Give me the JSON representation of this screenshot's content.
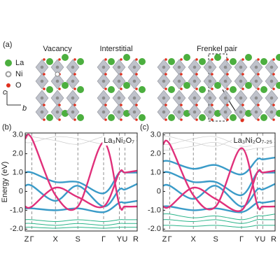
{
  "panel_a": {
    "label": "(a)",
    "titles": [
      "Vacancy",
      "Interstitial",
      "Frenkel pair"
    ],
    "legend": [
      {
        "name": "La",
        "color": "#4caf3f"
      },
      {
        "name": "Ni",
        "color": "#9e9e9e"
      },
      {
        "name": "O",
        "color": "#e0301e"
      }
    ],
    "axes": [
      "c",
      "b"
    ]
  },
  "chart_data": [
    {
      "type": "line",
      "label": "(b)",
      "annotation": "La₃Ni₂O₇",
      "ylabel": "Energy (eV)",
      "categories": [
        "Z",
        "Γ",
        "X",
        "S",
        "Γ",
        "Y",
        "U",
        "R"
      ],
      "ylim": [
        -2.1,
        3.1
      ],
      "yticks": [
        {
          "value": -2,
          "label": "-2.0"
        },
        {
          "value": -1,
          "label": "-1.0"
        },
        0,
        {
          "value": 1,
          "label": "1.0"
        },
        {
          "value": 2,
          "label": "2.0"
        },
        {
          "value": 3,
          "label": "3.0"
        }
      ],
      "series": [
        {
          "color": "#cccccc",
          "values": [
            2.9,
            2.9,
            2.7,
            2.5,
            2.9,
            2.8,
            2.8,
            2.9
          ]
        },
        {
          "color": "#cccccc",
          "values": [
            2.6,
            2.6,
            2.9,
            2.8,
            2.5,
            2.6,
            2.6,
            2.7
          ]
        },
        {
          "color": "#2bb58a",
          "values": [
            -1.5,
            -1.5,
            -1.6,
            -1.5,
            -1.6,
            -1.5,
            -1.5,
            -1.5
          ]
        },
        {
          "color": "#2bb58a",
          "values": [
            -1.7,
            -1.7,
            -1.8,
            -1.7,
            -1.8,
            -1.7,
            -1.7,
            -1.7
          ]
        },
        {
          "color": "#2bb58a",
          "values": [
            -1.9,
            -1.9,
            -1.95,
            -1.9,
            -1.95,
            -1.9,
            -1.9,
            -1.9
          ]
        },
        {
          "color": "#3a9bc8",
          "values": [
            1.0,
            1.0,
            0.5,
            0.5,
            -0.1,
            1.0,
            1.0,
            1.0
          ]
        },
        {
          "color": "#3a9bc8",
          "values": [
            0.3,
            0.3,
            -0.5,
            0.3,
            -0.8,
            0.1,
            0.1,
            0.4
          ]
        },
        {
          "color": "#3a9bc8",
          "values": [
            -0.9,
            -0.9,
            -1.0,
            -0.9,
            -1.1,
            -0.6,
            -0.6,
            -0.5
          ]
        },
        {
          "color": "#e0307a",
          "values": [
            2.8,
            2.8,
            -0.2,
            -0.8,
            2.6,
            -0.7,
            -0.8,
            -0.8
          ]
        },
        {
          "color": "#e0307a",
          "values": [
            -0.8,
            -0.8,
            0.2,
            -0.3,
            -0.8,
            1.0,
            1.0,
            1.1
          ]
        }
      ]
    },
    {
      "type": "line",
      "label": "(c)",
      "annotation": "La₃Ni₂O₇.₂₅",
      "categories": [
        "Z",
        "Γ",
        "X",
        "S",
        "Γ",
        "Y",
        "U",
        "R"
      ],
      "ylim": [
        -2.1,
        3.1
      ],
      "yticks": [
        {
          "value": -2,
          "label": "-2.0"
        },
        {
          "value": -1,
          "label": "-1.0"
        },
        0,
        {
          "value": 1,
          "label": "1.0"
        },
        {
          "value": 2,
          "label": "2.0"
        },
        {
          "value": 3,
          "label": "3.0"
        }
      ],
      "series": [
        {
          "color": "#cccccc",
          "values": [
            2.9,
            2.9,
            2.6,
            2.4,
            2.9,
            2.7,
            2.7,
            2.8
          ]
        },
        {
          "color": "#cccccc",
          "values": [
            2.5,
            2.5,
            2.8,
            2.9,
            2.4,
            2.5,
            2.5,
            2.6
          ]
        },
        {
          "color": "#cccccc",
          "values": [
            2.2,
            2.2,
            2.4,
            2.6,
            2.2,
            2.3,
            2.3,
            2.4
          ]
        },
        {
          "color": "#2bb58a",
          "values": [
            -1.2,
            -1.2,
            -1.4,
            -1.3,
            -1.5,
            -1.3,
            -1.3,
            -1.2
          ]
        },
        {
          "color": "#2bb58a",
          "values": [
            -1.5,
            -1.5,
            -1.6,
            -1.5,
            -1.7,
            -1.5,
            -1.5,
            -1.5
          ]
        },
        {
          "color": "#2bb58a",
          "values": [
            -1.8,
            -1.8,
            -1.85,
            -1.8,
            -1.9,
            -1.8,
            -1.8,
            -1.8
          ]
        },
        {
          "color": "#3a9bc8",
          "values": [
            1.6,
            1.6,
            1.2,
            1.4,
            0.9,
            1.7,
            1.7,
            1.8
          ]
        },
        {
          "color": "#3a9bc8",
          "values": [
            1.0,
            1.0,
            0.5,
            0.5,
            -0.2,
            1.0,
            1.0,
            1.0
          ]
        },
        {
          "color": "#3a9bc8",
          "values": [
            0.3,
            0.3,
            -0.4,
            0.3,
            -0.8,
            0.1,
            0.1,
            0.4
          ]
        },
        {
          "color": "#3a9bc8",
          "values": [
            -0.8,
            -0.8,
            -1.0,
            -0.9,
            -1.1,
            -0.6,
            -0.6,
            -0.5
          ]
        },
        {
          "color": "#e0307a",
          "values": [
            2.5,
            2.5,
            -0.2,
            -0.8,
            2.3,
            -0.7,
            -0.8,
            -0.8
          ]
        },
        {
          "color": "#e0307a",
          "values": [
            -0.8,
            -0.8,
            0.2,
            -0.4,
            -1.0,
            1.0,
            1.0,
            1.1
          ]
        }
      ]
    }
  ]
}
